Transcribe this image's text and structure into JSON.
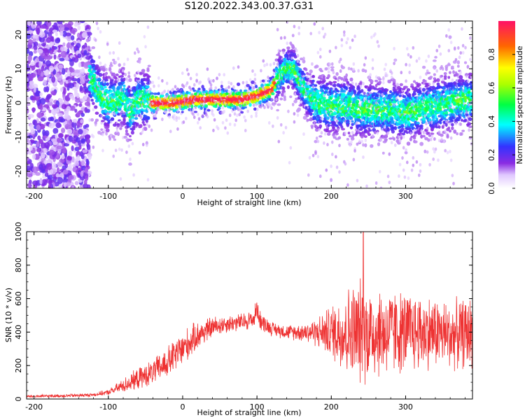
{
  "title": "S120.2022.343.00.37.G31",
  "chart_data": [
    {
      "type": "heatmap",
      "xlabel": "Height of straight line (km)",
      "ylabel": "Frequency (Hz)",
      "xlim": [
        -210,
        390
      ],
      "ylim": [
        -25,
        24
      ],
      "x_ticks": [
        -200,
        -100,
        0,
        100,
        200,
        300
      ],
      "y_ticks": [
        -20,
        -10,
        0,
        10,
        20
      ],
      "colorbar": {
        "label": "Normalized spectral amplitude",
        "range": [
          0,
          1
        ],
        "ticks": [
          "0.0",
          "0.2",
          "0.4",
          "0.6",
          "0.8"
        ],
        "colormap": "rainbow"
      },
      "ridge": {
        "x": [
          -125,
          -110,
          -100,
          -90,
          -80,
          -70,
          -60,
          -50,
          -40,
          -30,
          -20,
          -10,
          0,
          20,
          40,
          60,
          80,
          100,
          110,
          120,
          130,
          140,
          150,
          160,
          170,
          180,
          200,
          220,
          240,
          260,
          280,
          300,
          320,
          340,
          360,
          390
        ],
        "y": [
          8,
          2,
          0,
          0,
          2,
          -3,
          1,
          1,
          0,
          0,
          0,
          0,
          0.5,
          1,
          1,
          1,
          1,
          2,
          3,
          4,
          8,
          10,
          10,
          5,
          2,
          0,
          -1,
          -1,
          -2,
          -2,
          -2,
          -3,
          -2,
          -1,
          0,
          1
        ]
      }
    },
    {
      "type": "line",
      "xlabel": "Height of straight line (km)",
      "ylabel": "SNR (10 * v/v)",
      "xlim": [
        -210,
        390
      ],
      "ylim": [
        0,
        1000
      ],
      "x_ticks": [
        -200,
        -100,
        0,
        100,
        200,
        300
      ],
      "y_ticks": [
        0,
        200,
        400,
        600,
        800,
        1000
      ],
      "color": "#ee3333",
      "envelope": {
        "x": [
          -210,
          -150,
          -120,
          -100,
          -80,
          -60,
          -40,
          -20,
          0,
          20,
          40,
          60,
          80,
          100,
          120,
          140,
          160,
          180,
          200,
          220,
          240,
          260,
          280,
          300,
          320,
          340,
          360,
          390
        ],
        "mean": [
          15,
          20,
          25,
          40,
          80,
          120,
          160,
          220,
          300,
          380,
          430,
          450,
          460,
          480,
          420,
          400,
          400,
          400,
          400,
          400,
          400,
          400,
          400,
          400,
          400,
          400,
          380,
          400
        ],
        "spread": [
          8,
          10,
          10,
          15,
          40,
          60,
          70,
          90,
          100,
          80,
          60,
          50,
          50,
          60,
          40,
          40,
          50,
          80,
          150,
          250,
          300,
          260,
          250,
          230,
          220,
          200,
          190,
          200
        ]
      }
    }
  ]
}
